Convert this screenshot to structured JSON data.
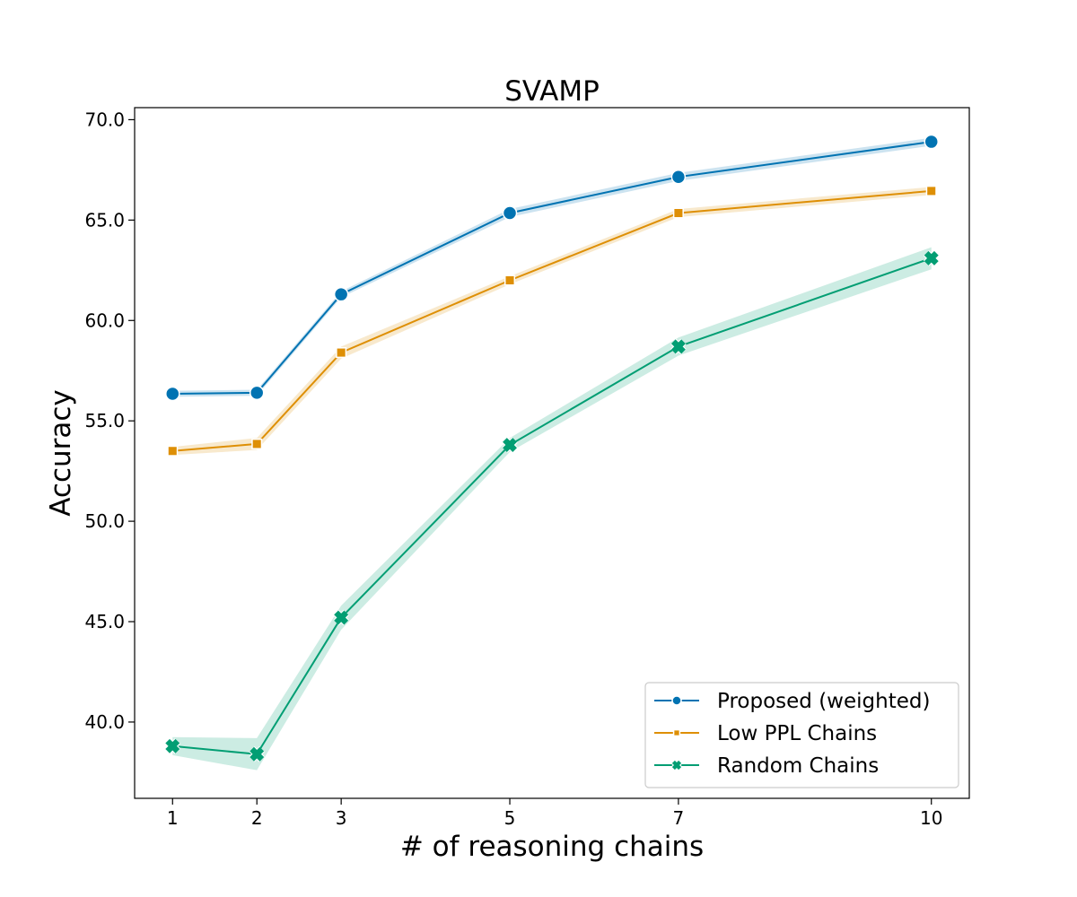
{
  "chart_data": {
    "type": "line",
    "title": "SVAMP",
    "xlabel": "# of reasoning chains",
    "ylabel": "Accuracy",
    "x": [
      1,
      2,
      3,
      5,
      7,
      10
    ],
    "x_tick_labels": [
      "1",
      "2",
      "3",
      "5",
      "7",
      "10"
    ],
    "y_ticks": [
      40.0,
      45.0,
      50.0,
      55.0,
      60.0,
      65.0,
      70.0
    ],
    "y_tick_labels": [
      "40.0",
      "45.0",
      "50.0",
      "55.0",
      "60.0",
      "65.0",
      "70.0"
    ],
    "xlim": [
      0.55,
      10.45
    ],
    "ylim": [
      36.2,
      70.6
    ],
    "grid": false,
    "legend_position": "lower-right",
    "series": [
      {
        "name": "Proposed (weighted)",
        "color": "#0173b2",
        "marker": "circle",
        "values": [
          56.35,
          56.4,
          61.3,
          65.35,
          67.15,
          68.9
        ],
        "band": [
          0.15,
          0.15,
          0.15,
          0.2,
          0.2,
          0.2
        ]
      },
      {
        "name": "Low PPL Chains",
        "color": "#de8f05",
        "marker": "square",
        "values": [
          53.5,
          53.85,
          58.4,
          62.0,
          65.35,
          66.45
        ],
        "band": [
          0.2,
          0.3,
          0.3,
          0.2,
          0.2,
          0.2
        ]
      },
      {
        "name": "Random Chains",
        "color": "#029e73",
        "marker": "x",
        "values": [
          38.8,
          38.4,
          45.2,
          53.8,
          58.7,
          63.1
        ],
        "band": [
          0.45,
          0.8,
          0.6,
          0.35,
          0.45,
          0.55
        ]
      }
    ]
  }
}
